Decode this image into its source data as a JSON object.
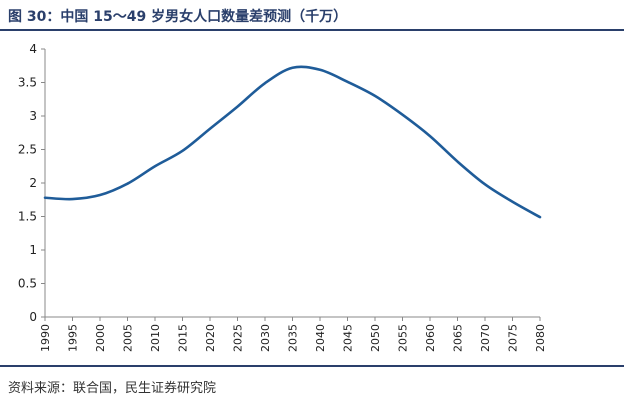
{
  "figure": {
    "title": "图 30：中国 15～49 岁男女人口数量差预测（千万）",
    "source": "资料来源：联合国，民生证券研究院",
    "accent_color": "#2a3f6b",
    "line_color": "#1f5c99"
  },
  "chart_data": {
    "type": "line",
    "title": "",
    "xlabel": "",
    "ylabel": "",
    "x": [
      1990,
      1995,
      2000,
      2005,
      2010,
      2015,
      2020,
      2025,
      2030,
      2035,
      2040,
      2045,
      2050,
      2055,
      2060,
      2065,
      2070,
      2075,
      2080
    ],
    "series": [
      {
        "name": "",
        "values": [
          1.78,
          1.76,
          1.82,
          1.99,
          2.25,
          2.48,
          2.81,
          3.14,
          3.49,
          3.72,
          3.69,
          3.51,
          3.3,
          3.02,
          2.7,
          2.32,
          1.98,
          1.72,
          1.49
        ]
      }
    ],
    "ylim": [
      0,
      4
    ],
    "yticks": [
      "0",
      "0.5",
      "1",
      "1.5",
      "2",
      "2.5",
      "3",
      "3.5",
      "4"
    ],
    "xticks": [
      "1990",
      "1995",
      "2000",
      "2005",
      "2010",
      "2015",
      "2020",
      "2025",
      "2030",
      "2035",
      "2040",
      "2045",
      "2050",
      "2055",
      "2060",
      "2065",
      "2070",
      "2075",
      "2080"
    ],
    "grid": false,
    "legend": "none"
  }
}
